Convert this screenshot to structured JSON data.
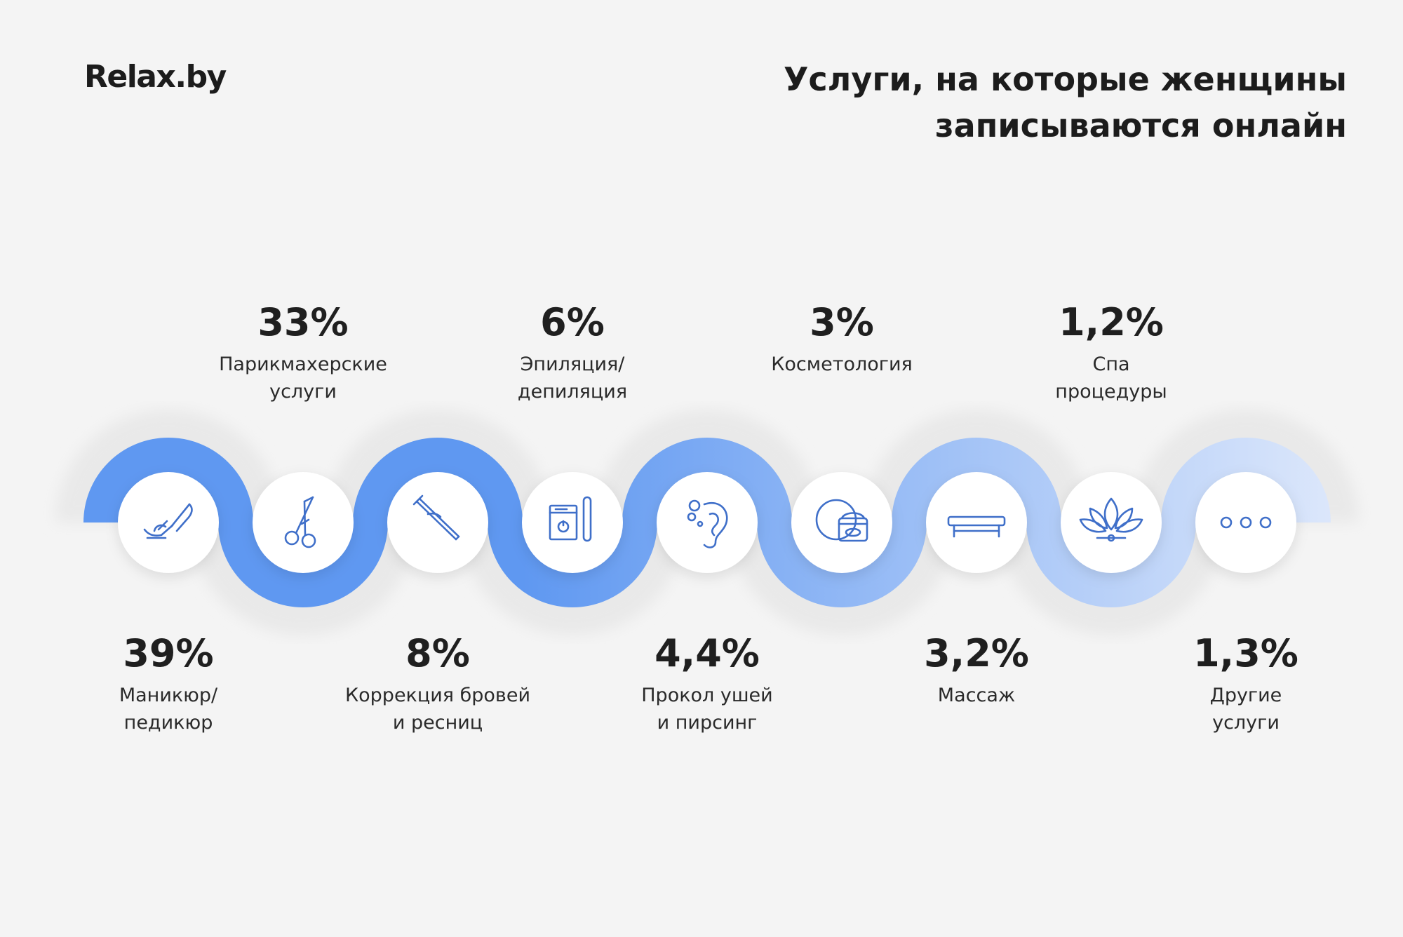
{
  "logo": "Relax.by",
  "title": {
    "line1": "Услуги, на которые женщины",
    "line2": "записываются онлайн"
  },
  "colors": {
    "background": "#f4f4f4",
    "wave_start": "#5f98f1",
    "wave_end": "#dce7fb",
    "icon_stroke": "#3f6fc9",
    "circle": "#ffffff",
    "text": "#1f1f1f"
  },
  "items": [
    {
      "icon": "manicure-icon",
      "percent": "39%",
      "label": [
        "Маникюр/",
        "педикюр"
      ],
      "value": 39,
      "position": "bottom"
    },
    {
      "icon": "scissors-icon",
      "percent": "33%",
      "label": [
        "Парикмахерские",
        "услуги"
      ],
      "value": 33,
      "position": "top"
    },
    {
      "icon": "tweezers-icon",
      "percent": "8%",
      "label": [
        "Коррекция бровей",
        "и ресниц"
      ],
      "value": 8,
      "position": "bottom"
    },
    {
      "icon": "wax-icon",
      "percent": "6%",
      "label": [
        "Эпиляция/",
        "депиляция"
      ],
      "value": 6,
      "position": "top"
    },
    {
      "icon": "ear-piercing-icon",
      "percent": "4,4%",
      "label": [
        "Прокол ушей",
        "и пирсинг"
      ],
      "value": 4.4,
      "position": "bottom"
    },
    {
      "icon": "cream-jar-icon",
      "percent": "3%",
      "label": [
        "Косметология"
      ],
      "value": 3,
      "position": "top"
    },
    {
      "icon": "massage-table-icon",
      "percent": "3,2%",
      "label": [
        "Массаж"
      ],
      "value": 3.2,
      "position": "bottom"
    },
    {
      "icon": "lotus-icon",
      "percent": "1,2%",
      "label": [
        "Спа",
        "процедуры"
      ],
      "value": 1.2,
      "position": "top"
    },
    {
      "icon": "more-icon",
      "percent": "1,3%",
      "label": [
        "Другие",
        "услуги"
      ],
      "value": 1.3,
      "position": "bottom"
    }
  ]
}
